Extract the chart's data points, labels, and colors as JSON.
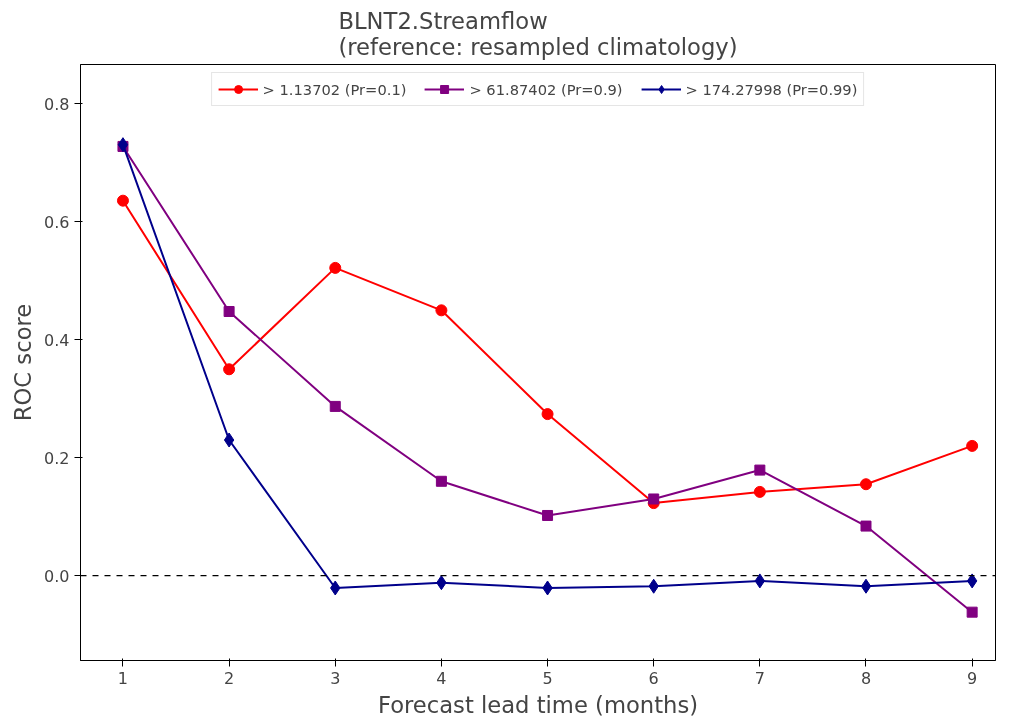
{
  "chart_data": {
    "type": "line",
    "title": "BLNT2.Streamflow\n(reference: resampled climatology)",
    "xlabel": "Forecast lead time (months)",
    "ylabel": "ROC score",
    "x": [
      1,
      2,
      3,
      4,
      5,
      6,
      7,
      8,
      9
    ],
    "series": [
      {
        "name": "> 1.13702 (Pr=0.1)",
        "color": "#ff0000",
        "marker": "circle",
        "values": [
          0.636,
          0.35,
          0.522,
          0.45,
          0.274,
          0.123,
          0.142,
          0.155,
          0.22
        ]
      },
      {
        "name": "> 61.87402 (Pr=0.9)",
        "color": "#800080",
        "marker": "square",
        "values": [
          0.728,
          0.448,
          0.287,
          0.16,
          0.102,
          0.13,
          0.179,
          0.084,
          -0.062
        ]
      },
      {
        "name": "> 174.27998 (Pr=0.99)",
        "color": "#00008b",
        "marker": "diamond",
        "values": [
          0.731,
          0.23,
          -0.021,
          -0.012,
          -0.021,
          -0.018,
          -0.009,
          -0.018,
          -0.009
        ]
      }
    ],
    "xlim": [
      0.6,
      9.22
    ],
    "ylim": [
      -0.144,
      0.867
    ],
    "xticks": [
      1,
      2,
      3,
      4,
      5,
      6,
      7,
      8,
      9
    ],
    "yticks": [
      {
        "value": 0,
        "label": "0.0"
      },
      0.2,
      0.4,
      0.6,
      0.8
    ],
    "ref_lines": [
      {
        "axis": "y",
        "value": 0,
        "color": "#000000",
        "line_style": "dashed"
      }
    ],
    "grid": false,
    "legend": "top",
    "line_style": "solid"
  }
}
